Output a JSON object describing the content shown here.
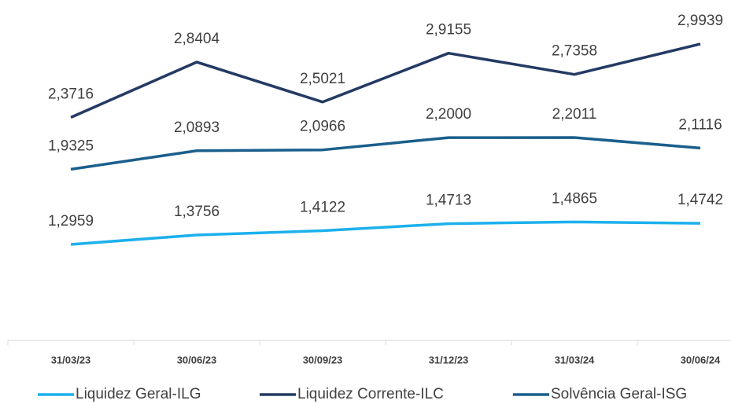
{
  "chart_data": {
    "type": "line",
    "categories": [
      "31/03/23",
      "30/06/23",
      "30/09/23",
      "31/12/23",
      "31/03/24",
      "30/06/24"
    ],
    "series": [
      {
        "name": "Liquidez Geral-ILG",
        "color": "#1cb0ec",
        "values": [
          1.2959,
          1.3756,
          1.4122,
          1.4713,
          1.4865,
          1.4742
        ],
        "value_labels": [
          "1,2959",
          "1,3756",
          "1,4122",
          "1,4713",
          "1,4865",
          "1,4742"
        ]
      },
      {
        "name": "Liquidez Corrente-ILC",
        "color": "#243a64",
        "values": [
          2.3716,
          2.8404,
          2.5021,
          2.9155,
          2.7358,
          2.9939
        ],
        "value_labels": [
          "2,3716",
          "2,8404",
          "2,5021",
          "2,9155",
          "2,7358",
          "2,9939"
        ]
      },
      {
        "name": "Solvência Geral-ISG",
        "color": "#1a5f8c",
        "values": [
          1.9325,
          2.0893,
          2.0966,
          2.2,
          2.2011,
          2.1116
        ],
        "value_labels": [
          "1,9325",
          "2,0893",
          "2,0966",
          "2,2000",
          "2,2011",
          "2,1116"
        ]
      }
    ],
    "ylim": [
      0.5,
      3.0
    ],
    "grid": false,
    "legend": "bottom"
  }
}
